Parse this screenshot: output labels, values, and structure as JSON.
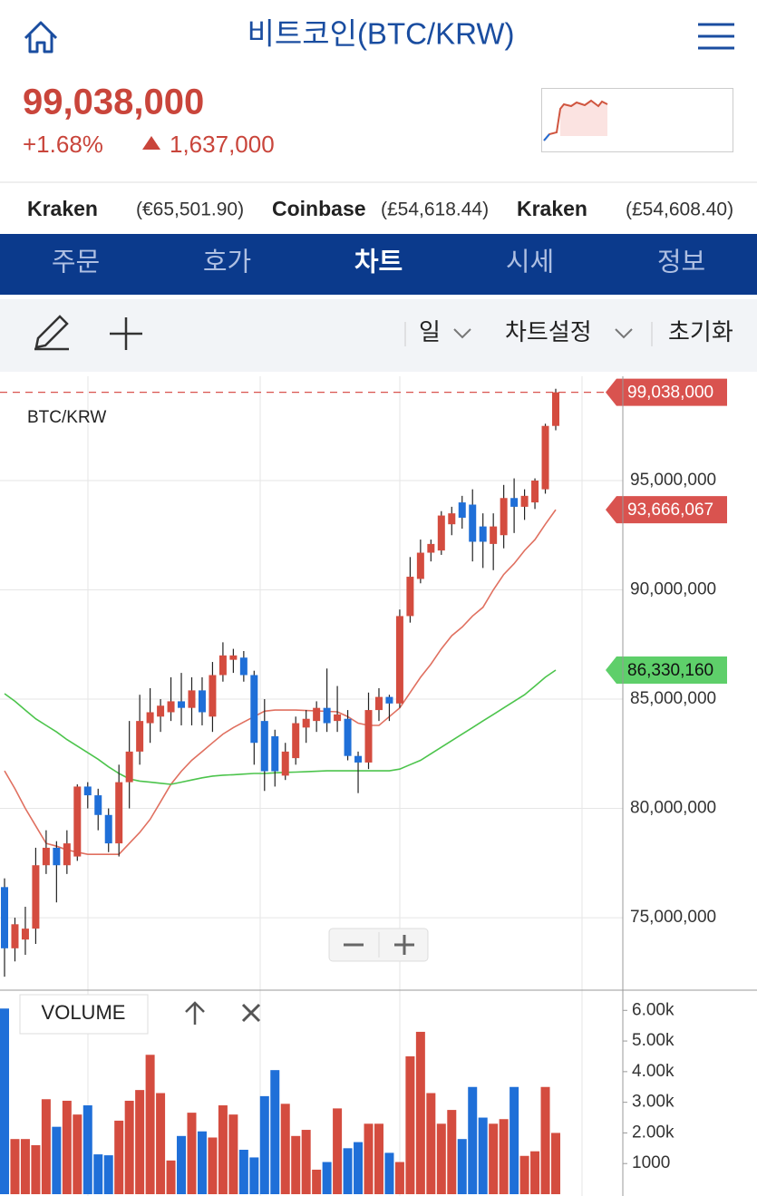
{
  "header": {
    "title": "비트코인(BTC/KRW)",
    "price": "99,038,000",
    "change_pct": "+1.68%",
    "change_amount": "1,637,000"
  },
  "tickers": [
    {
      "exchange": "Kraken",
      "price": "(€65,501.90)"
    },
    {
      "exchange": "Coinbase",
      "price": "(£54,618.44)"
    },
    {
      "exchange": "Kraken",
      "price": "(£54,608.40)"
    }
  ],
  "tabs": [
    "주문",
    "호가",
    "차트",
    "시세",
    "정보"
  ],
  "active_tab": 2,
  "toolbar": {
    "interval": "일",
    "settings": "차트설정",
    "reset": "초기화"
  },
  "chart_data": [
    {
      "type": "candlestick",
      "title": "BTC/KRW",
      "up_color": "#d44c3f",
      "down_color": "#1f6fd8",
      "open": [
        76400000,
        73600000,
        74000000,
        74500000,
        77400000,
        78200000,
        77400000,
        77800000,
        81000000,
        80600000,
        79700000,
        78400000,
        81200000,
        82600000,
        83900000,
        84200000,
        84400000,
        84900000,
        84600000,
        85400000,
        84200000,
        86100000,
        86800000,
        86900000,
        86100000,
        84000000,
        83300000,
        81500000,
        82300000,
        83700000,
        84000000,
        84600000,
        84000000,
        84100000,
        82400000,
        82100000,
        84500000,
        85100000,
        84800000,
        88800000,
        90500000,
        91700000,
        91800000,
        93000000,
        94000000,
        93900000,
        92900000,
        92100000,
        92500000,
        94200000,
        93800000,
        94000000,
        94600000,
        97500000
      ],
      "high": [
        76800000,
        75000000,
        75500000,
        78200000,
        79000000,
        78500000,
        79000000,
        81100000,
        81200000,
        80900000,
        80000000,
        82000000,
        84000000,
        85200000,
        85500000,
        85000000,
        86000000,
        86200000,
        86000000,
        86000000,
        86700000,
        87600000,
        87300000,
        87200000,
        86300000,
        85000000,
        83600000,
        83000000,
        84200000,
        84500000,
        84900000,
        86400000,
        85600000,
        84500000,
        82600000,
        85300000,
        85500000,
        85200000,
        89100000,
        91500000,
        92300000,
        92300000,
        93600000,
        93800000,
        94300000,
        94600000,
        93500000,
        93500000,
        94800000,
        95100000,
        94600000,
        95100000,
        97600000,
        99200000
      ],
      "low": [
        72300000,
        73000000,
        73300000,
        73800000,
        77000000,
        75700000,
        77000000,
        77600000,
        80000000,
        79000000,
        78000000,
        77800000,
        80000000,
        82000000,
        83000000,
        83500000,
        84000000,
        83800000,
        83800000,
        83800000,
        83500000,
        85800000,
        86200000,
        85800000,
        82000000,
        80800000,
        81000000,
        81300000,
        82000000,
        83000000,
        83500000,
        83500000,
        83500000,
        82200000,
        80700000,
        81800000,
        84000000,
        84000000,
        84600000,
        88500000,
        90300000,
        91300000,
        91600000,
        92500000,
        92800000,
        91300000,
        91000000,
        90900000,
        91900000,
        92600000,
        93200000,
        93700000,
        94400000,
        97300000
      ],
      "close": [
        73600000,
        74700000,
        74500000,
        77400000,
        78200000,
        77400000,
        78400000,
        81000000,
        80600000,
        79700000,
        78400000,
        81200000,
        82600000,
        84000000,
        84400000,
        84700000,
        84900000,
        84600000,
        85400000,
        84400000,
        86100000,
        87000000,
        87000000,
        86100000,
        83000000,
        81700000,
        81700000,
        82600000,
        83900000,
        84100000,
        84600000,
        83900000,
        84300000,
        82400000,
        82100000,
        84500000,
        85100000,
        84800000,
        88800000,
        90600000,
        91700000,
        92100000,
        93400000,
        93500000,
        93300000,
        92200000,
        92200000,
        92900000,
        94200000,
        93800000,
        94300000,
        95000000,
        97500000,
        99038000
      ],
      "series": [
        {
          "color": "#e07060",
          "values": [
            81720000,
            80900000,
            80000000,
            79200000,
            78400000,
            78270000,
            78100000,
            78000000,
            77900000,
            77900000,
            77900000,
            77900000,
            78400000,
            78900000,
            79500000,
            80300000,
            81100000,
            81700000,
            82200000,
            82600000,
            83000000,
            83400000,
            83700000,
            83950000,
            84200000,
            84450000,
            84500000,
            84500000,
            84500000,
            84480000,
            84460000,
            84440000,
            84420000,
            84200000,
            83900000,
            83800000,
            83800000,
            84200000,
            84600000,
            85300000,
            86000000,
            86600000,
            87300000,
            87900000,
            88300000,
            88800000,
            89200000,
            90000000,
            90700000,
            91200000,
            91800000,
            92300000,
            93000000,
            93666067
          ]
        },
        {
          "color": "#4cc44c",
          "values": [
            85250000,
            84900000,
            84500000,
            84100000,
            83800000,
            83500000,
            83150000,
            82850000,
            82550000,
            82250000,
            81900000,
            81600000,
            81350000,
            81250000,
            81200000,
            81150000,
            81100000,
            81200000,
            81300000,
            81400000,
            81480000,
            81520000,
            81540000,
            81570000,
            81600000,
            81600000,
            81630000,
            81650000,
            81660000,
            81680000,
            81700000,
            81720000,
            81720000,
            81720000,
            81720000,
            81720000,
            81720000,
            81720000,
            81800000,
            82000000,
            82200000,
            82500000,
            82800000,
            83100000,
            83400000,
            83700000,
            84000000,
            84300000,
            84600000,
            84900000,
            85200000,
            85600000,
            86000000,
            86330160
          ]
        }
      ],
      "price_labels": [
        {
          "value": 99038000,
          "label": "99,038,000",
          "color": "#d9534f",
          "text_color": "#ffffff"
        },
        {
          "value": 93666067,
          "label": "93,666,067",
          "color": "#d9534f",
          "text_color": "#ffffff"
        },
        {
          "value": 86330160,
          "label": "86,330,160",
          "color": "#5ecf6a",
          "text_color": "#111111"
        }
      ],
      "ylim": [
        71850000,
        99770000
      ],
      "yticks": [
        {
          "value": 75000000,
          "label": "75,000,000"
        },
        {
          "value": 80000000,
          "label": "80,000,000"
        },
        {
          "value": 85000000,
          "label": "85,000,000"
        },
        {
          "value": 90000000,
          "label": "90,000,000"
        },
        {
          "value": 95000000,
          "label": "95,000,000"
        }
      ],
      "grid": true
    },
    {
      "type": "bar",
      "legend": "VOLUME",
      "values": [
        6060,
        1800,
        1800,
        1600,
        3100,
        2200,
        3050,
        2600,
        2900,
        1300,
        1270,
        2400,
        3050,
        3400,
        4550,
        3300,
        1100,
        1900,
        2660,
        2050,
        1850,
        2900,
        2600,
        1450,
        1200,
        3200,
        4050,
        2950,
        1900,
        2100,
        800,
        1050,
        2800,
        1500,
        1700,
        2300,
        2300,
        1350,
        1050,
        4500,
        5300,
        3300,
        2300,
        2750,
        1800,
        3500,
        2500,
        2300,
        2450,
        3500,
        1250,
        1400,
        3500,
        2000
      ],
      "ylim": [
        0,
        6630
      ],
      "yticks": [
        1000,
        {
          "value": 2000,
          "label": "2.00k"
        },
        {
          "value": 3000,
          "label": "3.00k"
        },
        {
          "value": 4000,
          "label": "4.00k"
        },
        {
          "value": 5000,
          "label": "5.00k"
        },
        {
          "value": 6000,
          "label": "6.00k"
        }
      ]
    }
  ]
}
